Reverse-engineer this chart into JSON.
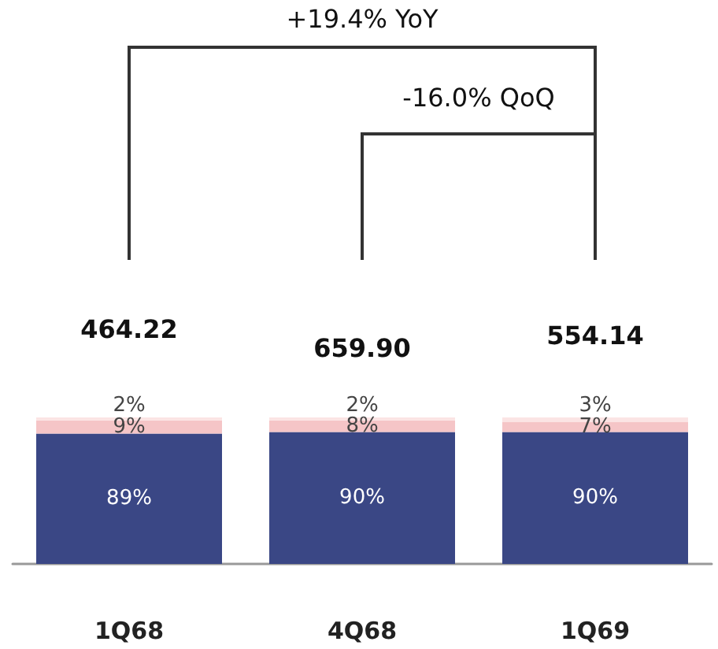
{
  "chart_data": {
    "type": "bar",
    "stacked": true,
    "categories": [
      "1Q68",
      "4Q68",
      "1Q69"
    ],
    "series": [
      {
        "color": "#3a4785",
        "values": [
          89,
          90,
          90
        ],
        "value_labels": [
          "89%",
          "90%",
          "90%"
        ]
      },
      {
        "color": "#f5c5c7",
        "values": [
          9,
          8,
          7
        ],
        "value_labels": [
          "9%",
          "8%",
          "7%"
        ]
      },
      {
        "color": "#fbe4e4",
        "values": [
          2,
          2,
          3
        ],
        "value_labels": [
          "2%",
          "2%",
          "3%"
        ]
      }
    ],
    "annotations": [
      "+19.4% YoY",
      "-16.0% QoQ",
      "464.22",
      "659.90",
      "554.14"
    ],
    "grid": false
  }
}
